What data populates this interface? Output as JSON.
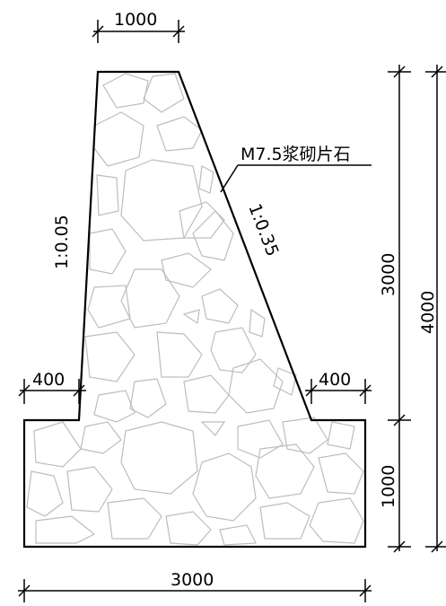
{
  "dimensions": {
    "top_width": "1000",
    "left_step": "400",
    "right_step": "400",
    "wall_height": "3000",
    "total_height": "4000",
    "base_height": "1000",
    "base_width": "3000"
  },
  "slopes": {
    "front": "1:0.05",
    "back": "1:0.35"
  },
  "material_label": "M7.5浆砌片石"
}
